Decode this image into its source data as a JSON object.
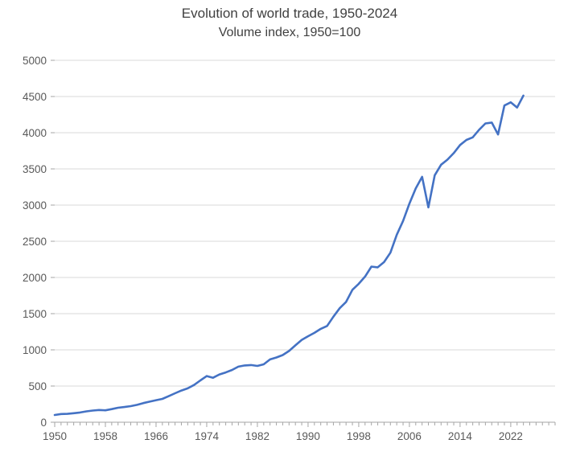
{
  "chart_data": {
    "type": "line",
    "title": "Evolution of world trade, 1950-2024",
    "subtitle": "Volume index, 1950=100",
    "xlabel": "",
    "ylabel": "",
    "legend": "none",
    "grid": "horizontal",
    "xlim": [
      1950,
      2029
    ],
    "ylim": [
      0,
      5000
    ],
    "ytick_step": 500,
    "xticks": [
      1950,
      1958,
      1966,
      1974,
      1982,
      1990,
      1998,
      2006,
      2014,
      2022
    ],
    "line_color": "#4472C4",
    "gridline_color": "#D9D9D9",
    "axis_color": "#A6A6A6",
    "tick_color": "#A6A6A6",
    "text_color": "#595959",
    "title_color": "#404040",
    "x": [
      1950,
      1951,
      1952,
      1953,
      1954,
      1955,
      1956,
      1957,
      1958,
      1959,
      1960,
      1961,
      1962,
      1963,
      1964,
      1965,
      1966,
      1967,
      1968,
      1969,
      1970,
      1971,
      1972,
      1973,
      1974,
      1975,
      1976,
      1977,
      1978,
      1979,
      1980,
      1981,
      1982,
      1983,
      1984,
      1985,
      1986,
      1987,
      1988,
      1989,
      1990,
      1991,
      1992,
      1993,
      1994,
      1995,
      1996,
      1997,
      1998,
      1999,
      2000,
      2001,
      2002,
      2003,
      2004,
      2005,
      2006,
      2007,
      2008,
      2009,
      2010,
      2011,
      2012,
      2013,
      2014,
      2015,
      2016,
      2017,
      2018,
      2019,
      2020,
      2021,
      2022,
      2023,
      2024
    ],
    "values": [
      100,
      113,
      116,
      124,
      134,
      150,
      161,
      169,
      164,
      181,
      200,
      210,
      222,
      240,
      264,
      284,
      304,
      322,
      360,
      400,
      438,
      468,
      514,
      578,
      638,
      614,
      660,
      688,
      722,
      768,
      784,
      790,
      778,
      800,
      868,
      894,
      928,
      984,
      1062,
      1138,
      1188,
      1234,
      1290,
      1330,
      1458,
      1576,
      1662,
      1830,
      1912,
      2012,
      2150,
      2140,
      2212,
      2342,
      2590,
      2780,
      3020,
      3230,
      3390,
      2968,
      3412,
      3558,
      3628,
      3718,
      3830,
      3900,
      3936,
      4040,
      4128,
      4140,
      3976,
      4376,
      4420,
      4348,
      4512
    ]
  }
}
